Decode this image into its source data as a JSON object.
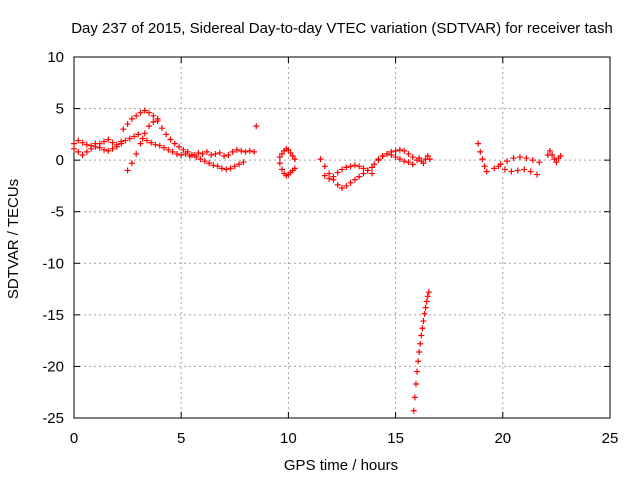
{
  "chart_data": {
    "type": "scatter",
    "title": "Day 237 of 2015, Sidereal Day-to-day VTEC variation (SDTVAR) for receiver tash",
    "xlabel": "GPS time / hours",
    "ylabel": "SDTVAR / TECUs",
    "xlim": [
      0,
      25
    ],
    "ylim": [
      -25,
      10
    ],
    "xticks": [
      0,
      5,
      10,
      15,
      20,
      25
    ],
    "yticks": [
      -25,
      -20,
      -15,
      -10,
      -5,
      0,
      5,
      10
    ],
    "grid": true,
    "marker": "+",
    "color": "#ff0000",
    "series": [
      {
        "name": "SDTVAR",
        "segments": [
          {
            "x": [
              0.0,
              0.2,
              0.4,
              0.6,
              0.8,
              1.0,
              1.2,
              1.4,
              1.6,
              1.8,
              2.0,
              2.2,
              2.4,
              2.6,
              2.8,
              3.0,
              3.2,
              3.4,
              3.6,
              3.8,
              4.0,
              4.2,
              4.4,
              4.6,
              4.8,
              5.0,
              5.2,
              5.4,
              5.6,
              5.8,
              6.0,
              6.2,
              6.4,
              6.6,
              6.8,
              7.0,
              7.2,
              7.4,
              7.6,
              7.8,
              8.0,
              8.2,
              8.4
            ],
            "y": [
              1.6,
              1.9,
              1.7,
              1.5,
              1.4,
              1.6,
              1.2,
              1.0,
              0.9,
              1.1,
              1.3,
              1.6,
              1.9,
              2.1,
              2.3,
              2.5,
              2.1,
              1.9,
              1.7,
              1.5,
              1.4,
              1.2,
              1.0,
              0.8,
              0.6,
              0.5,
              0.6,
              0.4,
              0.5,
              0.7,
              0.6,
              0.8,
              0.5,
              0.6,
              0.7,
              0.4,
              0.5,
              0.8,
              1.0,
              0.9,
              0.8,
              0.9,
              0.8
            ]
          },
          {
            "x": [
              0.0,
              0.2,
              0.4,
              0.6,
              0.8,
              1.0,
              1.2,
              1.4,
              1.6,
              1.8,
              2.0,
              2.2
            ],
            "y": [
              1.1,
              0.8,
              0.5,
              0.8,
              1.1,
              1.3,
              1.6,
              1.8,
              2.0,
              1.7,
              1.5,
              1.8
            ]
          },
          {
            "x": [
              2.3,
              2.5,
              2.7,
              2.9,
              3.1,
              3.3,
              3.5,
              3.7,
              3.9
            ],
            "y": [
              3.0,
              3.5,
              4.0,
              4.3,
              4.6,
              4.8,
              4.6,
              4.3,
              4.0
            ]
          },
          {
            "x": [
              2.5,
              2.7,
              2.9,
              3.1,
              3.3,
              3.5,
              3.7,
              3.9,
              4.1,
              4.3,
              4.5,
              4.7,
              4.9,
              5.1,
              5.3,
              5.5,
              5.7,
              5.9,
              6.1,
              6.3,
              6.5,
              6.7,
              6.9,
              7.1,
              7.3,
              7.5,
              7.7,
              7.9
            ],
            "y": [
              -1.0,
              -0.3,
              0.6,
              1.6,
              2.6,
              3.3,
              3.7,
              3.8,
              3.1,
              2.5,
              2.0,
              1.6,
              1.3,
              1.0,
              0.8,
              0.5,
              0.3,
              0.1,
              -0.1,
              -0.3,
              -0.5,
              -0.6,
              -0.8,
              -0.9,
              -0.8,
              -0.6,
              -0.4,
              -0.2
            ]
          },
          {
            "x": [
              8.5
            ],
            "y": [
              3.3
            ]
          },
          {
            "x": [
              9.6,
              9.7,
              9.8,
              9.9,
              10.0,
              10.1,
              10.2,
              10.3
            ],
            "y": [
              -0.3,
              -0.9,
              -1.3,
              -1.5,
              -1.4,
              -1.2,
              -1.0,
              -0.8
            ]
          },
          {
            "x": [
              9.6,
              9.7,
              9.8,
              9.9,
              10.0,
              10.1,
              10.2,
              10.3
            ],
            "y": [
              0.3,
              0.6,
              0.9,
              1.1,
              1.0,
              0.7,
              0.4,
              0.1
            ]
          },
          {
            "x": [
              11.5,
              11.7,
              11.9,
              12.1,
              12.3,
              12.5,
              12.7,
              12.9,
              13.1,
              13.3,
              13.5,
              13.7,
              13.9
            ],
            "y": [
              0.1,
              -0.6,
              -1.3,
              -1.9,
              -2.4,
              -2.7,
              -2.5,
              -2.2,
              -1.9,
              -1.6,
              -1.3,
              -1.0,
              -0.7
            ]
          },
          {
            "x": [
              11.7,
              11.9,
              12.1,
              12.3,
              12.5,
              12.7,
              12.9,
              13.1,
              13.3,
              13.5,
              13.7,
              13.9
            ],
            "y": [
              -1.5,
              -1.8,
              -1.6,
              -1.2,
              -0.9,
              -0.7,
              -0.6,
              -0.5,
              -0.6,
              -0.8,
              -1.0,
              -1.3
            ]
          },
          {
            "x": [
              14.0,
              14.2,
              14.4,
              14.6,
              14.8,
              15.0,
              15.2,
              15.4,
              15.6,
              15.8,
              16.0
            ],
            "y": [
              -0.4,
              0.0,
              0.4,
              0.6,
              0.8,
              0.9,
              1.0,
              0.9,
              0.6,
              0.3,
              0.0
            ]
          },
          {
            "x": [
              14.2,
              14.4,
              14.6,
              14.8,
              15.0,
              15.2,
              15.4,
              15.6,
              15.8
            ],
            "y": [
              0.1,
              0.4,
              0.6,
              0.5,
              0.3,
              0.1,
              -0.1,
              -0.2,
              -0.4
            ]
          },
          {
            "x": [
              16.1,
              16.2,
              16.3,
              16.4,
              16.5,
              16.6
            ],
            "y": [
              0.2,
              -0.1,
              -0.3,
              0.1,
              0.4,
              0.1
            ]
          },
          {
            "x": [
              15.85,
              15.9,
              15.95,
              16.0,
              16.05,
              16.1,
              16.15,
              16.2,
              16.25,
              16.3,
              16.35,
              16.4,
              16.45,
              16.5,
              16.55
            ],
            "y": [
              -24.3,
              -23.0,
              -21.7,
              -20.5,
              -19.5,
              -18.6,
              -17.8,
              -17.0,
              -16.3,
              -15.6,
              -14.9,
              -14.3,
              -13.7,
              -13.2,
              -12.8
            ]
          },
          {
            "x": [
              18.85,
              18.95,
              19.05,
              19.15,
              19.25
            ],
            "y": [
              1.6,
              0.8,
              0.1,
              -0.6,
              -1.1
            ]
          },
          {
            "x": [
              19.6,
              19.9,
              20.2,
              20.5,
              20.8,
              21.1,
              21.4,
              21.7
            ],
            "y": [
              -0.8,
              -0.4,
              -0.1,
              0.2,
              0.3,
              0.2,
              0.0,
              -0.2
            ]
          },
          {
            "x": [
              19.8,
              20.1,
              20.4,
              20.7,
              21.0,
              21.3,
              21.6
            ],
            "y": [
              -0.6,
              -0.9,
              -1.1,
              -1.0,
              -0.9,
              -1.1,
              -1.4
            ]
          },
          {
            "x": [
              22.1,
              22.2,
              22.3,
              22.4,
              22.5,
              22.6,
              22.7
            ],
            "y": [
              0.5,
              0.9,
              0.5,
              0.1,
              -0.2,
              0.2,
              0.4
            ]
          }
        ]
      }
    ]
  }
}
